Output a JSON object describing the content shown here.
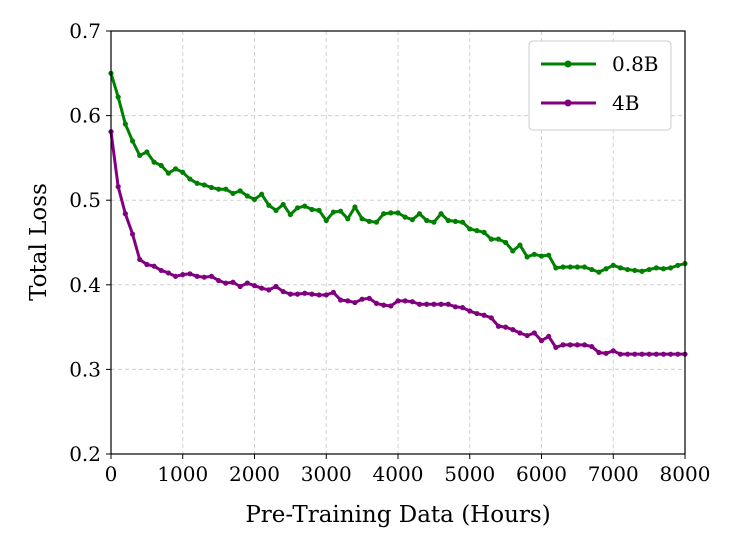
{
  "chart_data": {
    "type": "line",
    "xlabel": "Pre-Training Data (Hours)",
    "ylabel": "Total Loss",
    "xlim": [
      0,
      8000
    ],
    "ylim": [
      0.2,
      0.7
    ],
    "xticks": [
      "0",
      "1000",
      "2000",
      "3000",
      "4000",
      "5000",
      "6000",
      "7000",
      "8000"
    ],
    "yticks": [
      "0.2",
      "0.3",
      "0.4",
      "0.5",
      "0.6",
      "0.7"
    ],
    "grid": true,
    "legend": "top-right",
    "x": [
      0,
      100,
      200,
      300,
      400,
      500,
      600,
      700,
      800,
      900,
      1000,
      1100,
      1200,
      1300,
      1400,
      1500,
      1600,
      1700,
      1800,
      1900,
      2000,
      2100,
      2200,
      2300,
      2400,
      2500,
      2600,
      2700,
      2800,
      2900,
      3000,
      3100,
      3200,
      3300,
      3400,
      3500,
      3600,
      3700,
      3800,
      3900,
      4000,
      4100,
      4200,
      4300,
      4400,
      4500,
      4600,
      4700,
      4800,
      4900,
      5000,
      5100,
      5200,
      5300,
      5400,
      5500,
      5600,
      5700,
      5800,
      5900,
      6000,
      6100,
      6200,
      6300,
      6400,
      6500,
      6600,
      6700,
      6800,
      6900,
      7000,
      7100,
      7200,
      7300,
      7400,
      7500,
      7600,
      7700,
      7800,
      7900,
      8000
    ],
    "series": [
      {
        "name": "0.8B",
        "color": "#008000",
        "values": [
          0.65,
          0.622,
          0.59,
          0.57,
          0.553,
          0.557,
          0.545,
          0.541,
          0.532,
          0.537,
          0.533,
          0.525,
          0.52,
          0.518,
          0.515,
          0.513,
          0.513,
          0.508,
          0.511,
          0.505,
          0.501,
          0.507,
          0.494,
          0.488,
          0.495,
          0.483,
          0.491,
          0.493,
          0.489,
          0.488,
          0.476,
          0.486,
          0.487,
          0.478,
          0.492,
          0.478,
          0.475,
          0.474,
          0.484,
          0.485,
          0.485,
          0.48,
          0.477,
          0.484,
          0.476,
          0.474,
          0.484,
          0.476,
          0.475,
          0.474,
          0.466,
          0.464,
          0.462,
          0.454,
          0.454,
          0.45,
          0.44,
          0.447,
          0.433,
          0.436,
          0.434,
          0.435,
          0.42,
          0.421,
          0.421,
          0.421,
          0.421,
          0.418,
          0.415,
          0.419,
          0.423,
          0.42,
          0.418,
          0.417,
          0.416,
          0.418,
          0.42,
          0.419,
          0.42,
          0.423,
          0.425
        ]
      },
      {
        "name": "4B",
        "color": "#800080",
        "values": [
          0.581,
          0.516,
          0.484,
          0.46,
          0.43,
          0.424,
          0.422,
          0.417,
          0.414,
          0.41,
          0.412,
          0.413,
          0.41,
          0.409,
          0.41,
          0.405,
          0.402,
          0.403,
          0.398,
          0.402,
          0.399,
          0.396,
          0.394,
          0.398,
          0.392,
          0.389,
          0.389,
          0.39,
          0.389,
          0.388,
          0.388,
          0.391,
          0.382,
          0.381,
          0.379,
          0.383,
          0.384,
          0.378,
          0.376,
          0.375,
          0.381,
          0.381,
          0.38,
          0.377,
          0.377,
          0.377,
          0.377,
          0.377,
          0.374,
          0.373,
          0.369,
          0.366,
          0.364,
          0.361,
          0.351,
          0.35,
          0.347,
          0.343,
          0.34,
          0.343,
          0.334,
          0.339,
          0.326,
          0.329,
          0.329,
          0.329,
          0.329,
          0.327,
          0.32,
          0.319,
          0.322,
          0.318,
          0.318,
          0.318,
          0.318,
          0.318,
          0.318,
          0.318,
          0.318,
          0.318,
          0.318
        ]
      }
    ]
  }
}
